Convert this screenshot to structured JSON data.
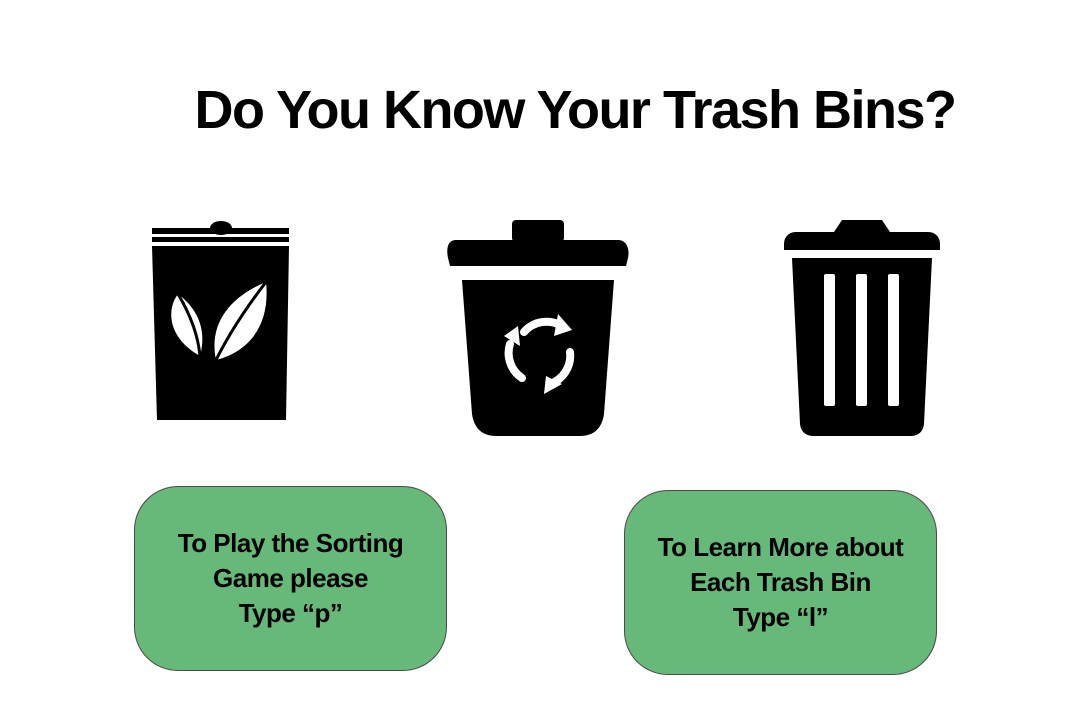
{
  "title": "Do You Know Your Trash Bins?",
  "bins": [
    {
      "name": "compost",
      "icon": "leaf-icon"
    },
    {
      "name": "recycling",
      "icon": "recycle-icon"
    },
    {
      "name": "trash",
      "icon": "trash-can-icon"
    }
  ],
  "play_option": {
    "lines": [
      "To Play the Sorting",
      "Game please",
      "Type “p”"
    ],
    "key": "p"
  },
  "learn_option": {
    "lines": [
      "To Learn More about",
      "Each Trash Bin",
      "Type “l”"
    ],
    "key": "l"
  },
  "colors": {
    "background": "#ffffff",
    "card": "#66b978",
    "card_border": "#4a4a4a",
    "icon": "#000000",
    "text": "#000000"
  }
}
